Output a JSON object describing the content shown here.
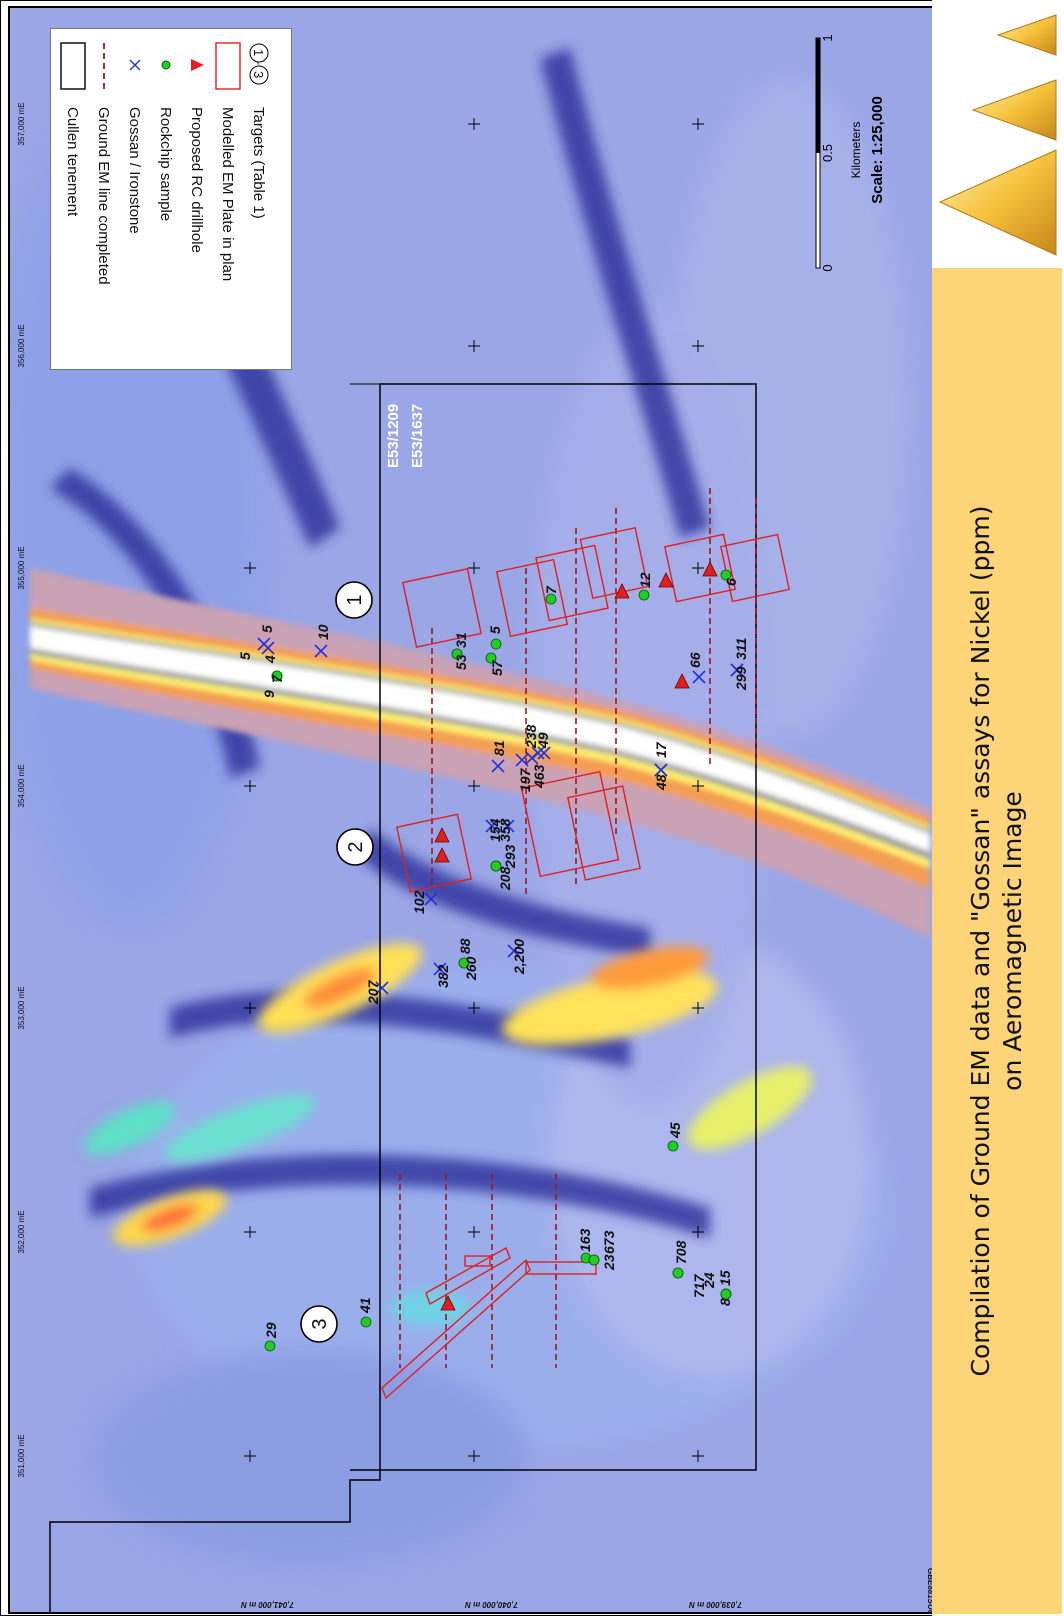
{
  "caption": {
    "line1": "Compilation of Ground EM data and \"Gossan\" assays for Nickel (ppm)",
    "line2": "on Aeromagnetic Image"
  },
  "legend": {
    "items": [
      {
        "symbol": "target-circles",
        "label": "Targets (Table 1)",
        "symbol_text": [
          "1",
          "3"
        ],
        "symbol_sep": "-"
      },
      {
        "symbol": "em-plate-rect",
        "label": "Modelled EM Plate in plan"
      },
      {
        "symbol": "red-triangle",
        "label": "Proposed RC drillhole"
      },
      {
        "symbol": "green-dot",
        "label": "Rockchip sample"
      },
      {
        "symbol": "blue-cross",
        "label": "Gossan / Ironstone"
      },
      {
        "symbol": "dashed-red-line",
        "label": "Ground EM line completed"
      },
      {
        "symbol": "black-rect",
        "label": "Cullen tenement"
      }
    ]
  },
  "scale": {
    "labels": [
      "0",
      "0.5",
      "1"
    ],
    "unit": "Kilometers",
    "text": "Scale: 1:25,000"
  },
  "grid": {
    "eastings": [
      "351,000 mE",
      "352,000 mE",
      "353,000 mE",
      "354,000 mE",
      "355,000 mE",
      "356,000 mE",
      "357,000 mE"
    ],
    "northings": [
      "7,041,000 m N",
      "7,040,000 m N",
      "7,039,000 m N"
    ],
    "ref_code": "GBE881SU6Z013"
  },
  "tenements": [
    "E53/1209",
    "E53/1637"
  ],
  "targets": [
    "1",
    "2",
    "3"
  ],
  "rockchips": [
    "9",
    "7",
    "4",
    "53",
    "31",
    "57",
    "5",
    "7",
    "12",
    "6",
    "208",
    "293",
    "260",
    "88",
    "45",
    "163",
    "23",
    "673",
    "708",
    "717",
    "24",
    "8",
    "15",
    "41",
    "29"
  ],
  "gossans": [
    "5",
    "5",
    "10",
    "154",
    "358",
    "81",
    "197",
    "463",
    "238",
    "49",
    "48",
    "17",
    "66",
    "299",
    "311",
    "102",
    "382",
    "207",
    "2,200"
  ],
  "colors": {
    "accent": "#fdd477",
    "drill": "#e02020",
    "rock": "#22cc22",
    "gossan": "#2233dd",
    "emline": "#a01818",
    "base": "#9aa6e6"
  },
  "icons": [
    "triangle-logo-icon"
  ]
}
